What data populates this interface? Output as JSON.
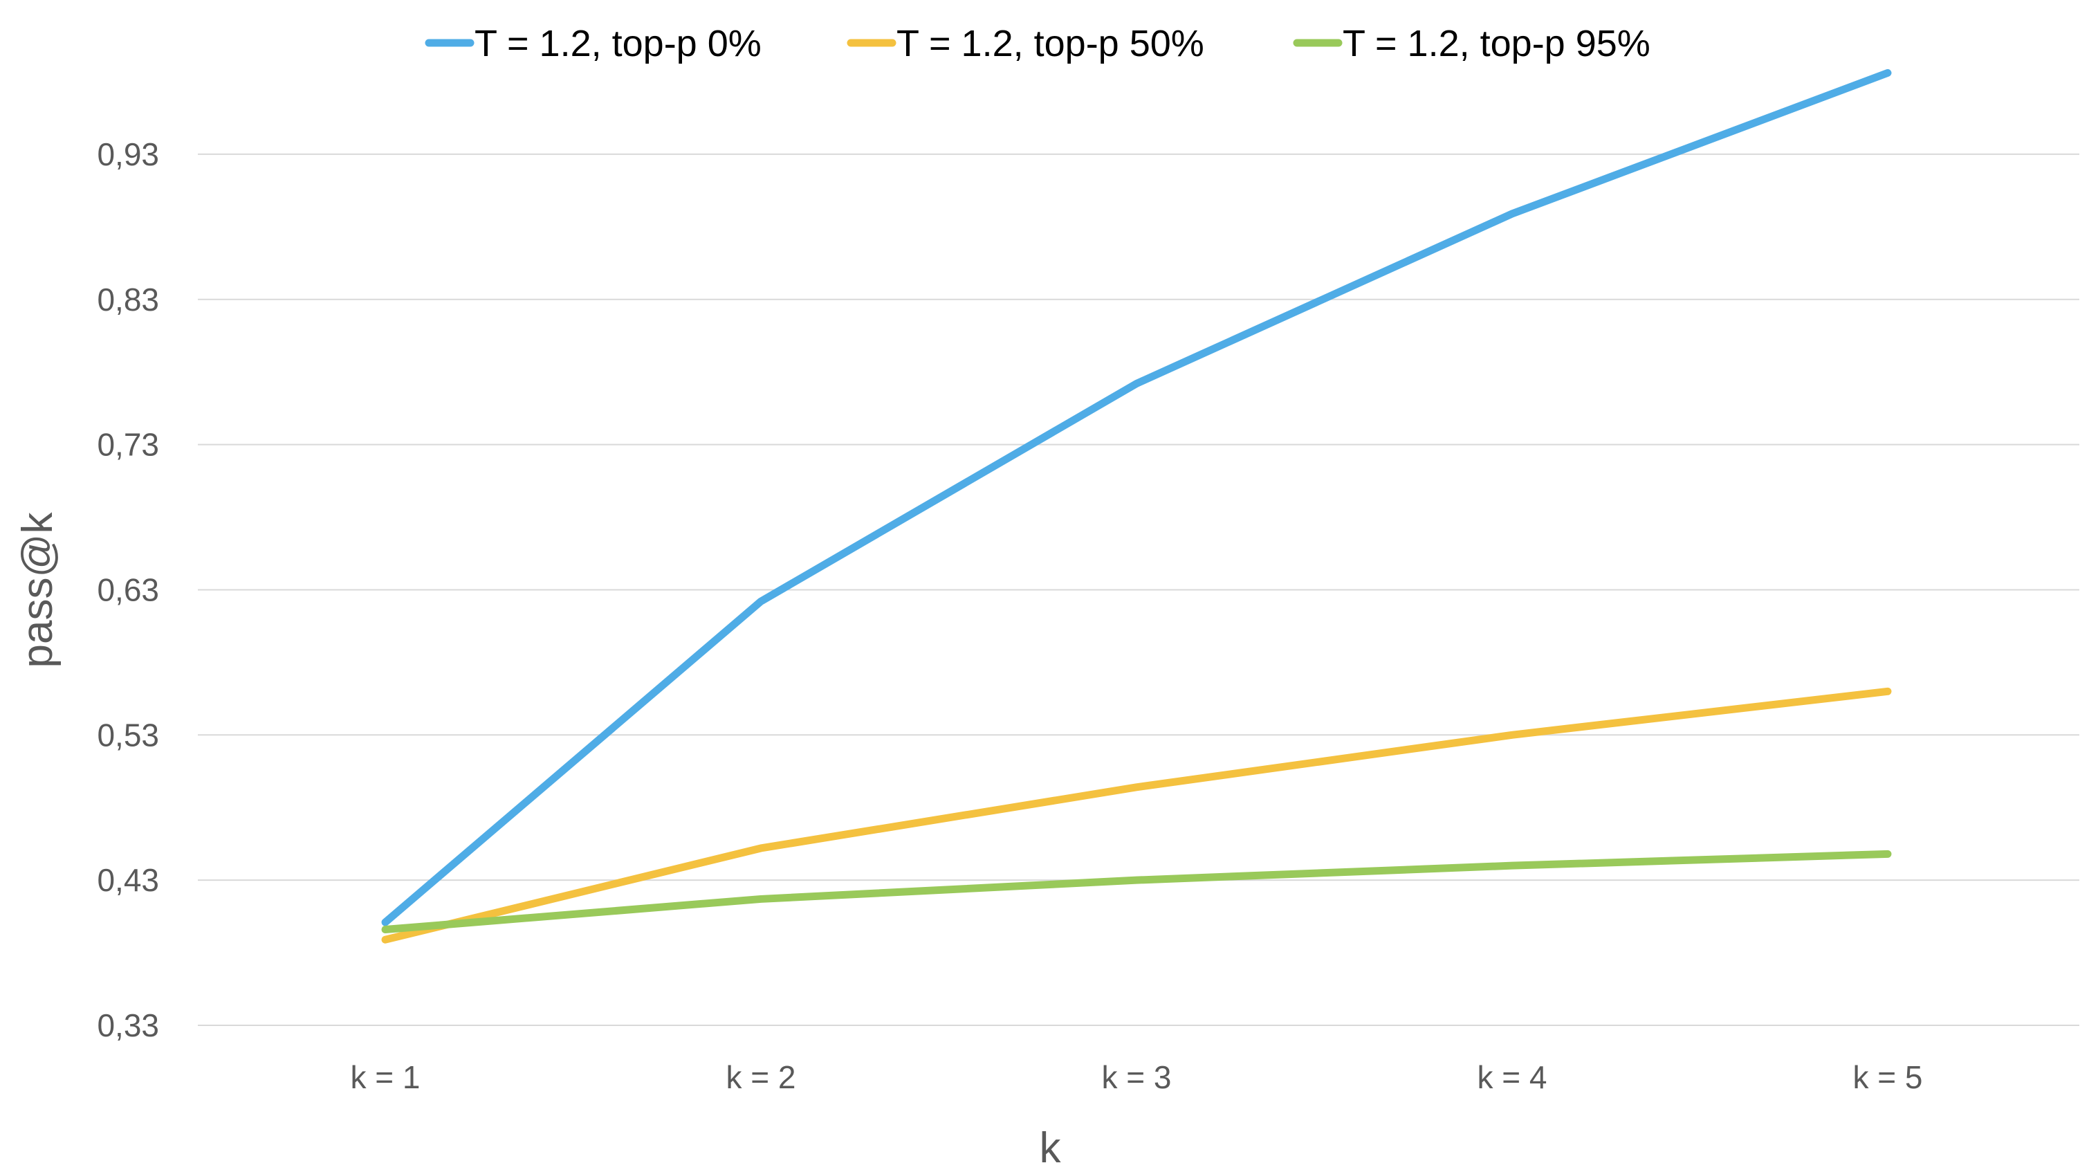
{
  "chart_data": {
    "type": "line",
    "title": "",
    "xlabel": "k",
    "ylabel": "pass@k",
    "categories": [
      "k = 1",
      "k = 2",
      "k = 3",
      "k = 4",
      "k = 5"
    ],
    "ylim": [
      0.33,
      0.99
    ],
    "yticks": [
      0.33,
      0.43,
      0.53,
      0.63,
      0.73,
      0.83,
      0.93
    ],
    "ytick_labels": [
      "0,33",
      "0,43",
      "0,53",
      "0,63",
      "0,73",
      "0,83",
      "0,93"
    ],
    "grid": true,
    "legend_position": "top",
    "series": [
      {
        "name": "T = 1.2, top-p 0%",
        "color": "#4FACE6",
        "values": [
          0.401,
          0.622,
          0.772,
          0.889,
          0.986
        ]
      },
      {
        "name": "T = 1.2, top-p 50%",
        "color": "#F4C13F",
        "values": [
          0.389,
          0.452,
          0.494,
          0.53,
          0.56
        ]
      },
      {
        "name": "T = 1.2, top-p 95%",
        "color": "#99C95A",
        "values": [
          0.396,
          0.417,
          0.43,
          0.44,
          0.448
        ]
      }
    ]
  }
}
